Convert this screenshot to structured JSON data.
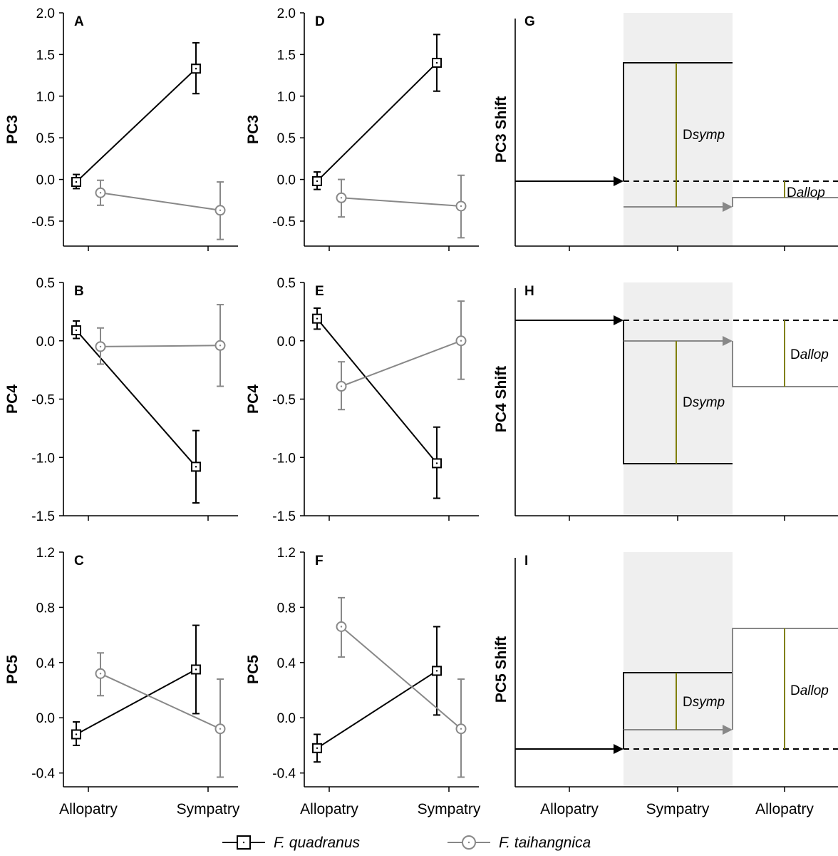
{
  "colors": {
    "quadranus": "#000000",
    "taihangnica": "#888888",
    "shade": "#efefef",
    "dline": "#808000"
  },
  "legend": [
    {
      "name": "F. quadranus",
      "marker": "square",
      "color": "#000000"
    },
    {
      "name": "F. taihangnica",
      "marker": "circle",
      "color": "#888888"
    }
  ],
  "chart_data": [
    {
      "panel": "A",
      "type": "line",
      "ylabel": "PC3",
      "categories": [
        "Allopatry",
        "Sympatry"
      ],
      "ylim": [
        -0.8,
        2.0
      ],
      "yticks": [
        2.0,
        1.5,
        1.0,
        0.5,
        0.0,
        -0.5
      ],
      "ytick_labels": [
        "2.0",
        "1.5",
        "1.0",
        "0.5",
        "0.0",
        "-0.5"
      ],
      "series": [
        {
          "name": "F. quadranus",
          "values": [
            -0.03,
            1.33
          ],
          "err_low": [
            -0.11,
            1.03
          ],
          "err_high": [
            0.06,
            1.64
          ]
        },
        {
          "name": "F. taihangnica",
          "values": [
            -0.16,
            -0.37
          ],
          "err_low": [
            -0.31,
            -0.72
          ],
          "err_high": [
            -0.01,
            -0.03
          ]
        }
      ]
    },
    {
      "panel": "B",
      "type": "line",
      "ylabel": "PC4",
      "categories": [
        "Allopatry",
        "Sympatry"
      ],
      "ylim": [
        -1.5,
        0.5
      ],
      "yticks": [
        0.5,
        0.0,
        -0.5,
        -1.0,
        -1.5
      ],
      "ytick_labels": [
        "0.5",
        "0.0",
        "-0.5",
        "-1.0",
        "-1.5"
      ],
      "series": [
        {
          "name": "F. quadranus",
          "values": [
            0.09,
            -1.08
          ],
          "err_low": [
            0.02,
            -1.39
          ],
          "err_high": [
            0.17,
            -0.77
          ]
        },
        {
          "name": "F. taihangnica",
          "values": [
            -0.05,
            -0.04
          ],
          "err_low": [
            -0.2,
            -0.39
          ],
          "err_high": [
            0.11,
            0.31
          ]
        }
      ]
    },
    {
      "panel": "C",
      "type": "line",
      "ylabel": "PC5",
      "categories": [
        "Allopatry",
        "Sympatry"
      ],
      "ylim": [
        -0.5,
        1.2
      ],
      "yticks": [
        1.2,
        0.8,
        0.4,
        0.0,
        -0.4
      ],
      "ytick_labels": [
        "1.2",
        "0.8",
        "0.4",
        "0.0",
        "-0.4"
      ],
      "series": [
        {
          "name": "F. quadranus",
          "values": [
            -0.12,
            0.35
          ],
          "err_low": [
            -0.2,
            0.03
          ],
          "err_high": [
            -0.03,
            0.67
          ]
        },
        {
          "name": "F. taihangnica",
          "values": [
            0.32,
            -0.08
          ],
          "err_low": [
            0.16,
            -0.43
          ],
          "err_high": [
            0.47,
            0.28
          ]
        }
      ]
    },
    {
      "panel": "D",
      "type": "line",
      "ylabel": "PC3",
      "categories": [
        "Allopatry",
        "Sympatry"
      ],
      "ylim": [
        -0.8,
        2.0
      ],
      "yticks": [
        2.0,
        1.5,
        1.0,
        0.5,
        0.0,
        -0.5
      ],
      "ytick_labels": [
        "2.0",
        "1.5",
        "1.0",
        "0.5",
        "0.0",
        "-0.5"
      ],
      "series": [
        {
          "name": "F. quadranus",
          "values": [
            -0.02,
            1.4
          ],
          "err_low": [
            -0.12,
            1.06
          ],
          "err_high": [
            0.09,
            1.74
          ]
        },
        {
          "name": "F. taihangnica",
          "values": [
            -0.22,
            -0.32
          ],
          "err_low": [
            -0.45,
            -0.7
          ],
          "err_high": [
            0.0,
            0.05
          ]
        }
      ]
    },
    {
      "panel": "E",
      "type": "line",
      "ylabel": "PC4",
      "categories": [
        "Allopatry",
        "Sympatry"
      ],
      "ylim": [
        -1.5,
        0.5
      ],
      "yticks": [
        0.5,
        0.0,
        -0.5,
        -1.0,
        -1.5
      ],
      "ytick_labels": [
        "0.5",
        "0.0",
        "-0.5",
        "-1.0",
        "-1.5"
      ],
      "series": [
        {
          "name": "F. quadranus",
          "values": [
            0.19,
            -1.05
          ],
          "err_low": [
            0.1,
            -1.35
          ],
          "err_high": [
            0.28,
            -0.74
          ]
        },
        {
          "name": "F. taihangnica",
          "values": [
            -0.39,
            0.0
          ],
          "err_low": [
            -0.59,
            -0.33
          ],
          "err_high": [
            -0.18,
            0.34
          ]
        }
      ]
    },
    {
      "panel": "F",
      "type": "line",
      "ylabel": "PC5",
      "categories": [
        "Allopatry",
        "Sympatry"
      ],
      "ylim": [
        -0.5,
        1.2
      ],
      "yticks": [
        1.2,
        0.8,
        0.4,
        0.0,
        -0.4
      ],
      "ytick_labels": [
        "1.2",
        "0.8",
        "0.4",
        "0.0",
        "-0.4"
      ],
      "series": [
        {
          "name": "F. quadranus",
          "values": [
            -0.22,
            0.34
          ],
          "err_low": [
            -0.32,
            0.02
          ],
          "err_high": [
            -0.12,
            0.66
          ]
        },
        {
          "name": "F. taihangnica",
          "values": [
            0.66,
            -0.08
          ],
          "err_low": [
            0.44,
            -0.43
          ],
          "err_high": [
            0.87,
            0.28
          ]
        }
      ]
    },
    {
      "panel": "G",
      "type": "schematic",
      "ylabel": "PC3 Shift",
      "categories": [
        "Allopatry",
        "Sympatry",
        "Allopatry"
      ],
      "labels": [
        "D",
        "symp",
        "D",
        "allop"
      ]
    },
    {
      "panel": "H",
      "type": "schematic",
      "ylabel": "PC4 Shift",
      "categories": [
        "Allopatry",
        "Sympatry",
        "Allopatry"
      ],
      "labels": [
        "D",
        "symp",
        "D",
        "allop"
      ]
    },
    {
      "panel": "I",
      "type": "schematic",
      "ylabel": "PC5 Shift",
      "categories": [
        "Allopatry",
        "Sympatry",
        "Allopatry"
      ],
      "labels": [
        "D",
        "symp",
        "D",
        "allop"
      ]
    }
  ]
}
